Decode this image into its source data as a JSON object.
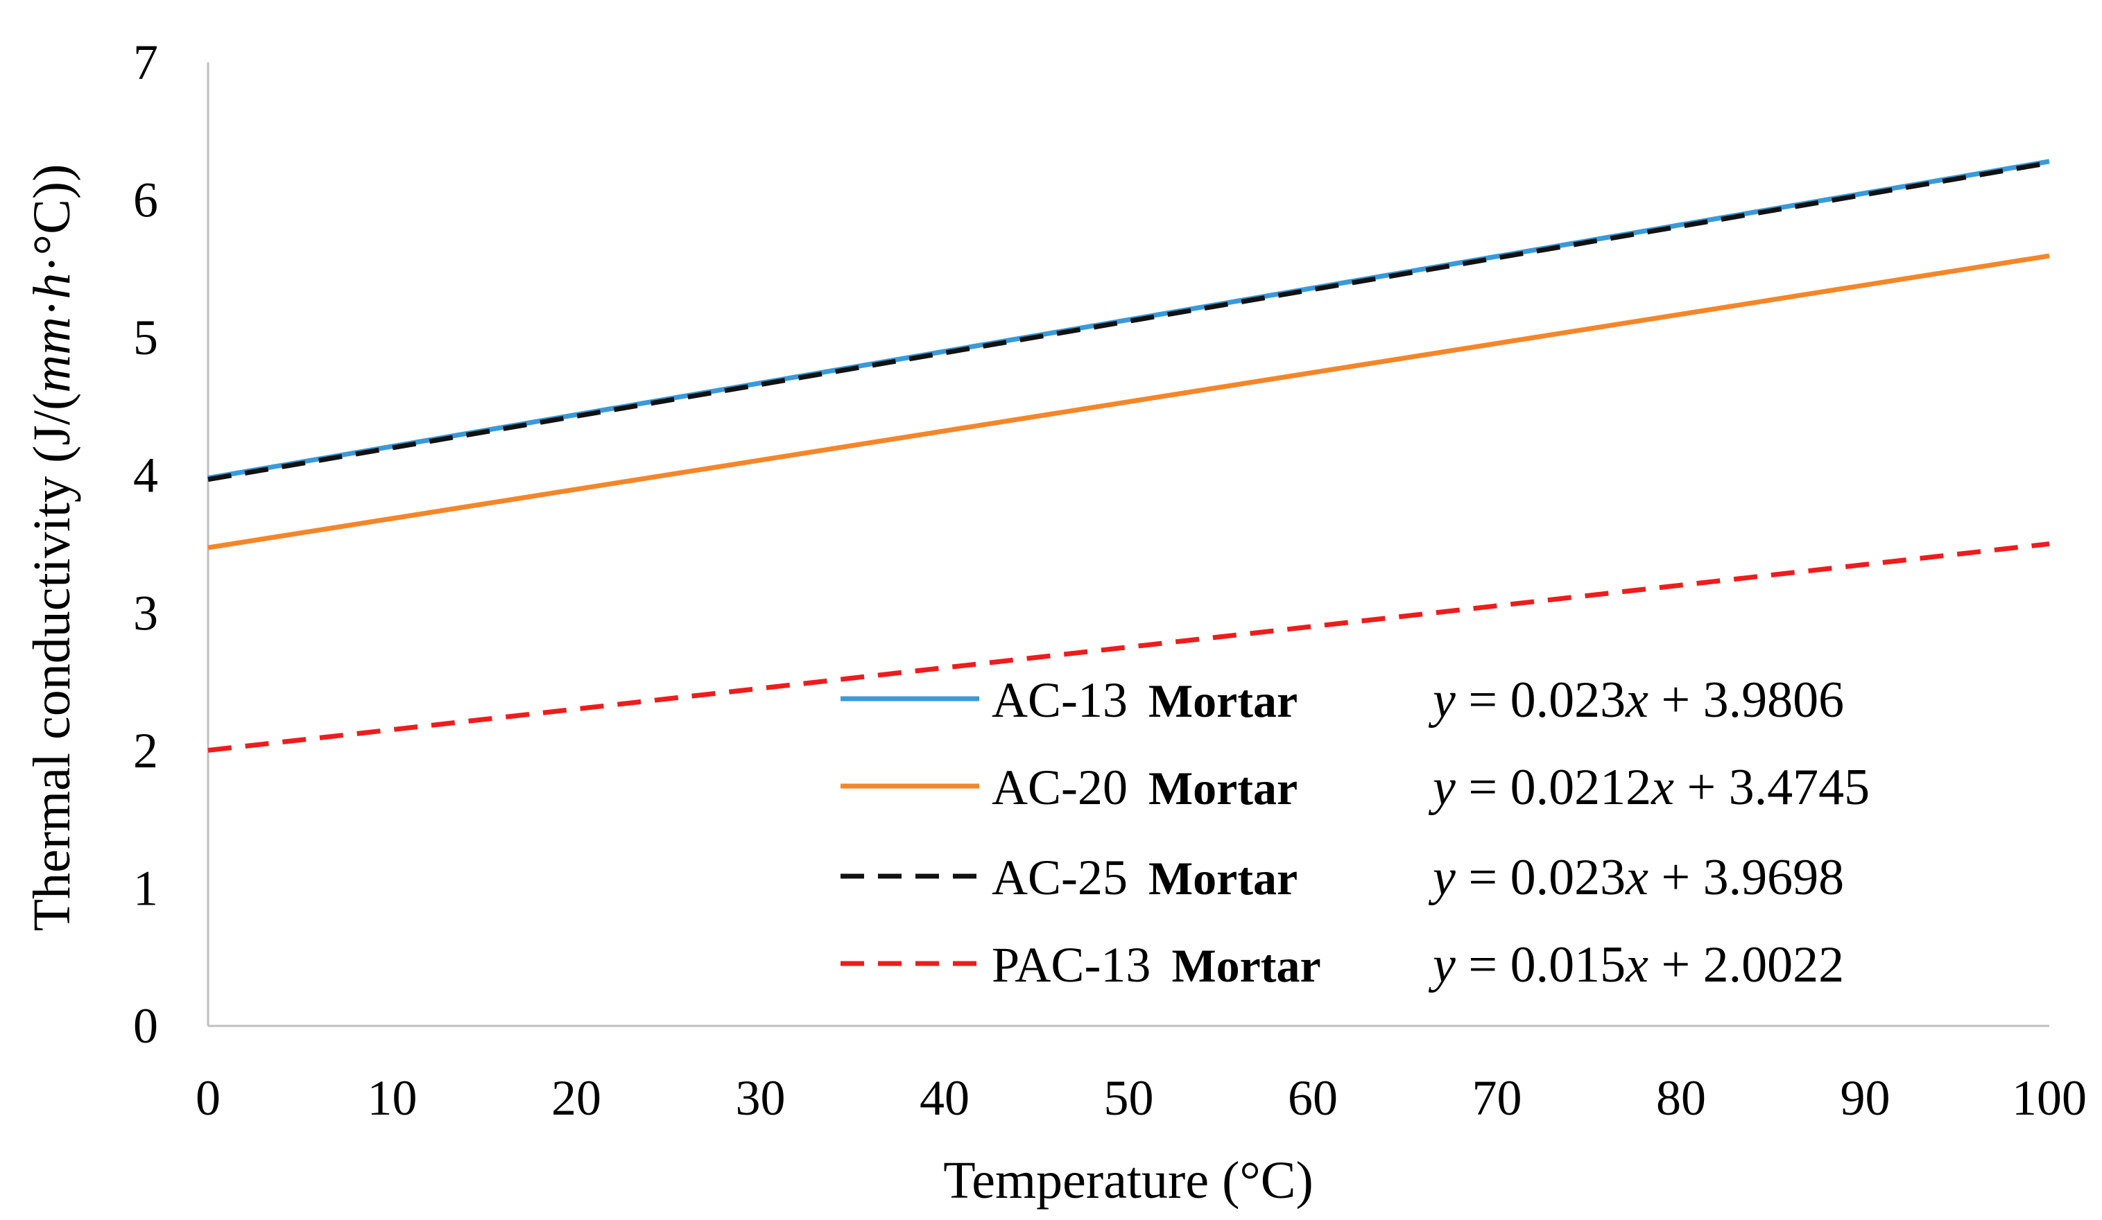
{
  "chart_data": {
    "type": "line",
    "title": "",
    "xlabel": "Temperature (°C)",
    "ylabel_parts": [
      "Thermal conductivity (J/(",
      "mm",
      "·",
      "h",
      "·°C))"
    ],
    "xlim": [
      0,
      100
    ],
    "ylim": [
      0,
      7
    ],
    "x_ticks": [
      0,
      10,
      20,
      30,
      40,
      50,
      60,
      70,
      80,
      90,
      100
    ],
    "y_ticks": [
      0,
      1,
      2,
      3,
      4,
      5,
      6,
      7
    ],
    "grid": false,
    "legend_position": "bottom-right",
    "series": [
      {
        "name": "AC-13",
        "name_suffix": "Mortar",
        "slope": 0.023,
        "intercept": 3.9806,
        "x": [
          0,
          100
        ],
        "values": [
          3.9806,
          6.2806
        ],
        "equation": {
          "lhs": "y",
          "eq": " = 0.023",
          "xvar": "x",
          "rest": " + 3.9806"
        },
        "color": "#3a9ad9",
        "style": "solid"
      },
      {
        "name": "AC-20",
        "name_suffix": "Mortar",
        "slope": 0.0212,
        "intercept": 3.4745,
        "x": [
          0,
          100
        ],
        "values": [
          3.4745,
          5.5945
        ],
        "equation": {
          "lhs": "y",
          "eq": " = 0.0212",
          "xvar": "x",
          "rest": " + 3.4745"
        },
        "color": "#f4862a",
        "style": "solid"
      },
      {
        "name": "AC-25",
        "name_suffix": "Mortar",
        "slope": 0.023,
        "intercept": 3.9698,
        "x": [
          0,
          100
        ],
        "values": [
          3.9698,
          6.2698
        ],
        "equation": {
          "lhs": "y",
          "eq": " = 0.023",
          "xvar": "x",
          "rest": " + 3.9698"
        },
        "color": "#111111",
        "style": "dashed"
      },
      {
        "name": "PAC-13",
        "name_suffix": "Mortar",
        "slope": 0.015,
        "intercept": 2.0022,
        "x": [
          0,
          100
        ],
        "values": [
          2.0022,
          3.5022
        ],
        "equation": {
          "lhs": "y",
          "eq": " = 0.015",
          "xvar": "x",
          "rest": " + 2.0022"
        },
        "color": "#ee1c1c",
        "style": "dashed"
      }
    ]
  }
}
